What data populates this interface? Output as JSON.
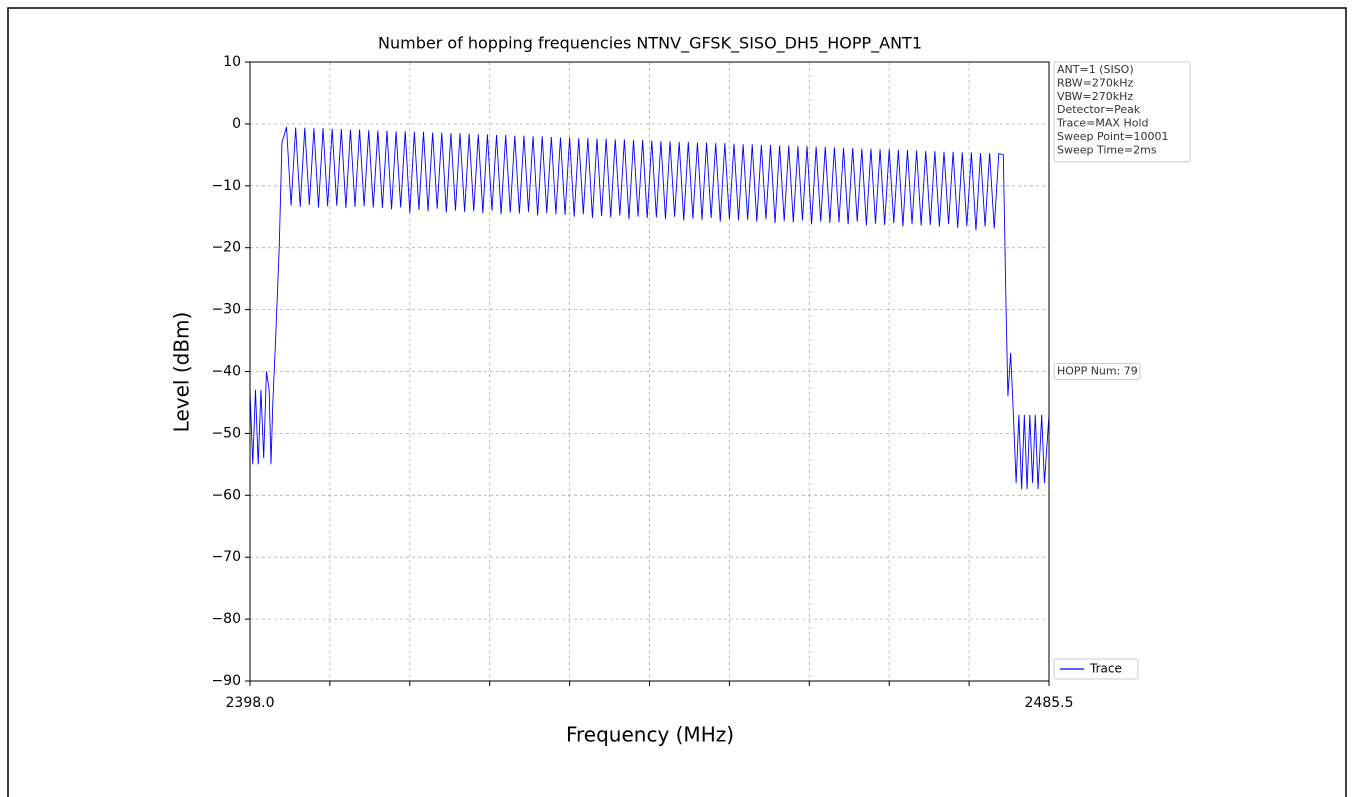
{
  "chart_data": {
    "type": "line",
    "title": "Number of hopping frequencies NTNV_GFSK_SISO_DH5_HOPP_ANT1",
    "x_label": "Frequency (MHz)",
    "y_label": "Level (dBm)",
    "xlim": [
      2398.0,
      2485.5
    ],
    "xticks": [
      {
        "value": 2398.0,
        "label": "2398.0"
      },
      {
        "value": 2485.5,
        "label": "2485.5"
      }
    ],
    "xgrid": [
      2406.75,
      2415.5,
      2424.25,
      2433,
      2441.75,
      2450.5,
      2459.25,
      2468,
      2476.75
    ],
    "ylim": [
      -90,
      10
    ],
    "yticks": [
      10,
      0,
      {
        "value": -10,
        "label": "−10"
      },
      {
        "value": -20,
        "label": "−20"
      },
      {
        "value": -30,
        "label": "−30"
      },
      {
        "value": -40,
        "label": "−40"
      },
      {
        "value": -50,
        "label": "−50"
      },
      {
        "value": -60,
        "label": "−60"
      },
      {
        "value": -70,
        "label": "−70"
      },
      {
        "value": -80,
        "label": "−80"
      },
      {
        "value": -90,
        "label": "−90"
      }
    ],
    "grid": true,
    "legend": "lower right",
    "info": [
      "ANT=1 (SISO)",
      "RBW=270kHz",
      "VBW=270kHz",
      "Detector=Peak",
      "Trace=MAX Hold",
      "Sweep Point=10001",
      "Sweep Time=2ms"
    ],
    "annotation": {
      "text": "HOPP Num: 79",
      "y": -40
    },
    "x": [
      2398.0,
      2398.3,
      2398.6,
      2398.9,
      2399.2,
      2399.5,
      2399.8,
      2400.1,
      2400.3,
      2400.5,
      2400.8,
      2401.2,
      2401.5,
      2402,
      2402.5,
      2403,
      2403.5,
      2404,
      2404.5,
      2405,
      2405.5,
      2406,
      2406.5,
      2407,
      2407.5,
      2408,
      2408.5,
      2409,
      2409.5,
      2410,
      2410.5,
      2411,
      2411.5,
      2412,
      2412.5,
      2413,
      2413.5,
      2414,
      2414.5,
      2415,
      2415.5,
      2416,
      2416.5,
      2417,
      2417.5,
      2418,
      2418.5,
      2419,
      2419.5,
      2420,
      2420.5,
      2421,
      2421.5,
      2422,
      2422.5,
      2423,
      2423.5,
      2424,
      2424.5,
      2425,
      2425.5,
      2426,
      2426.5,
      2427,
      2427.5,
      2428,
      2428.5,
      2429,
      2429.5,
      2430,
      2430.5,
      2431,
      2431.5,
      2432,
      2432.5,
      2433,
      2433.5,
      2434,
      2434.5,
      2435,
      2435.5,
      2436,
      2436.5,
      2437,
      2437.5,
      2438,
      2438.5,
      2439,
      2439.5,
      2440,
      2440.5,
      2441,
      2441.5,
      2442,
      2442.5,
      2443,
      2443.5,
      2444,
      2444.5,
      2445,
      2445.5,
      2446,
      2446.5,
      2447,
      2447.5,
      2448,
      2448.5,
      2449,
      2449.5,
      2450,
      2450.5,
      2451,
      2451.5,
      2452,
      2452.5,
      2453,
      2453.5,
      2454,
      2454.5,
      2455,
      2455.5,
      2456,
      2456.5,
      2457,
      2457.5,
      2458,
      2458.5,
      2459,
      2459.5,
      2460,
      2460.5,
      2461,
      2461.5,
      2462,
      2462.5,
      2463,
      2463.5,
      2464,
      2464.5,
      2465,
      2465.5,
      2466,
      2466.5,
      2467,
      2467.5,
      2468,
      2468.5,
      2469,
      2469.5,
      2470,
      2470.5,
      2471,
      2471.5,
      2472,
      2472.5,
      2473,
      2473.5,
      2474,
      2474.5,
      2475,
      2475.5,
      2476,
      2476.5,
      2477,
      2477.5,
      2478,
      2478.5,
      2479,
      2479.5,
      2480,
      2480.5,
      2480.8,
      2481.0,
      2481.3,
      2481.6,
      2481.9,
      2482.2,
      2482.5,
      2482.8,
      2483.1,
      2483.4,
      2483.7,
      2484.0,
      2484.3,
      2484.7,
      2485.0,
      2485.5
    ],
    "series": [
      {
        "name": "Trace",
        "color": "#0000ff",
        "values": [
          -43,
          -55,
          -43,
          -55,
          -43,
          -54,
          -40,
          -43,
          -55,
          -45,
          -35,
          -20,
          -3,
          -0.5,
          -13.2,
          -0.6,
          -13.4,
          -0.6,
          -13.1,
          -0.7,
          -13.5,
          -0.7,
          -13.3,
          -0.8,
          -13.2,
          -0.8,
          -13.6,
          -0.9,
          -13.4,
          -0.9,
          -13.3,
          -1.0,
          -13.5,
          -1.1,
          -13.6,
          -1.1,
          -13.8,
          -1.2,
          -13.5,
          -1.2,
          -14.4,
          -1.3,
          -13.9,
          -1.3,
          -14.1,
          -1.4,
          -13.7,
          -1.4,
          -14.3,
          -1.5,
          -14.0,
          -1.5,
          -14.2,
          -1.6,
          -14.1,
          -1.7,
          -14.4,
          -1.7,
          -14.0,
          -1.8,
          -14.6,
          -1.8,
          -14.3,
          -1.9,
          -14.5,
          -1.9,
          -14.2,
          -2.0,
          -14.8,
          -2.0,
          -14.4,
          -2.1,
          -14.6,
          -2.2,
          -14.7,
          -2.2,
          -15.0,
          -2.3,
          -14.6,
          -2.3,
          -15.2,
          -2.4,
          -14.9,
          -2.4,
          -15.1,
          -2.5,
          -14.8,
          -2.5,
          -15.4,
          -2.6,
          -15.0,
          -2.6,
          -15.2,
          -2.7,
          -15.1,
          -2.8,
          -15.4,
          -2.8,
          -15.0,
          -2.9,
          -15.6,
          -2.9,
          -15.3,
          -3.0,
          -15.5,
          -3.0,
          -15.2,
          -3.1,
          -15.8,
          -3.1,
          -15.4,
          -3.2,
          -15.6,
          -3.3,
          -15.5,
          -3.3,
          -15.8,
          -3.4,
          -15.4,
          -3.4,
          -16.0,
          -3.5,
          -15.7,
          -3.5,
          -15.9,
          -3.6,
          -15.6,
          -3.6,
          -16.2,
          -3.7,
          -15.8,
          -3.7,
          -16.0,
          -3.8,
          -15.9,
          -3.9,
          -16.2,
          -3.9,
          -15.8,
          -4.0,
          -16.4,
          -4.0,
          -16.1,
          -4.1,
          -16.3,
          -4.1,
          -16.0,
          -4.2,
          -16.6,
          -4.2,
          -16.2,
          -4.3,
          -16.4,
          -4.4,
          -16.3,
          -4.4,
          -16.6,
          -4.5,
          -16.2,
          -4.5,
          -16.8,
          -4.6,
          -16.5,
          -4.6,
          -17.2,
          -4.7,
          -16.6,
          -4.7,
          -16.9,
          -4.8,
          -5,
          -30,
          -44,
          -37,
          -47,
          -58,
          -47,
          -59,
          -47,
          -59,
          -47,
          -58,
          -47,
          -59,
          -47,
          -58,
          -47
        ]
      }
    ]
  }
}
